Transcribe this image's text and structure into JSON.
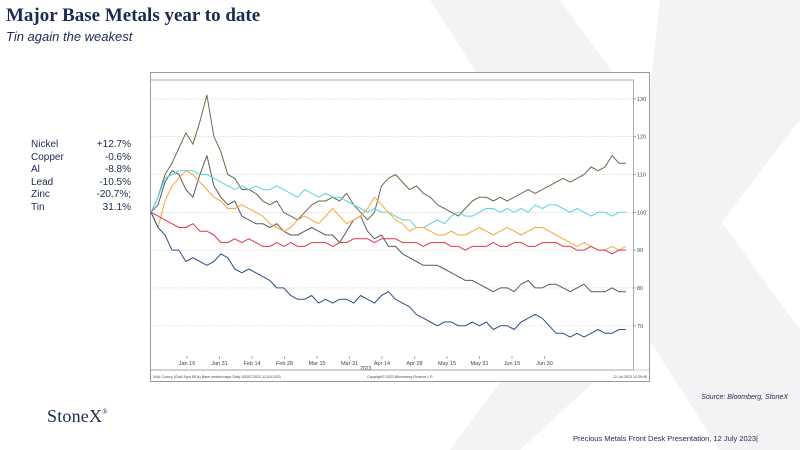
{
  "header": {
    "title": "Major Base Metals year to date",
    "subtitle": "Tin again the weakest"
  },
  "legend": [
    {
      "name": "Nickel",
      "value": "+12.7%"
    },
    {
      "name": "Copper",
      "value": "-0.6%"
    },
    {
      "name": "Al",
      "value": "-8.8%"
    },
    {
      "name": "Lead",
      "value": "-10.5%"
    },
    {
      "name": "Zinc",
      "value": "-20.7%;"
    },
    {
      "name": "Tin",
      "value": "31.1%"
    }
  ],
  "chart_data": {
    "type": "line",
    "ylim": [
      62,
      135
    ],
    "y_ticks": [
      70,
      80,
      90,
      100,
      110,
      120,
      130
    ],
    "x_tick_labels": [
      "Jan 16",
      "Jan 31",
      "Feb 14",
      "Feb 28",
      "Mar 15",
      "Mar 31",
      "Apr 14",
      "Apr 28",
      "May 15",
      "May 31",
      "Jun 15",
      "Jun 30"
    ],
    "x_year_label": "2023",
    "footer_left": "XAU Curncy (Gold Spot  $/Oz) Base metals major  Daily 30DEC2022-12JUL2023",
    "footer_mid": "Copyright© 2023 Bloomberg Finance L.P.",
    "footer_right": "12-Jul-2023 10:39:48",
    "grid": true,
    "series": [
      {
        "color": "#6b6b4b",
        "values": [
          100,
          104,
          110,
          113,
          117,
          121,
          118,
          124,
          131,
          120,
          116,
          110,
          109,
          106,
          106,
          105,
          103,
          102,
          103,
          100,
          99,
          98,
          100,
          102,
          103,
          103,
          104,
          103,
          105,
          102,
          100,
          98,
          100,
          107,
          109,
          110,
          108,
          106,
          107,
          105,
          104,
          102,
          101,
          100,
          99,
          101,
          103,
          104,
          104,
          103,
          104,
          103,
          104,
          105,
          106,
          105,
          106,
          107,
          108,
          109,
          108,
          109,
          110,
          112,
          111,
          112,
          115,
          113,
          113
        ]
      },
      {
        "color": "#5a5a5a",
        "values": [
          100,
          102,
          108,
          111,
          110,
          106,
          104,
          110,
          115,
          107,
          104,
          102,
          103,
          99,
          98,
          97,
          97,
          96,
          97,
          95,
          94,
          94,
          95,
          96,
          95,
          94,
          94,
          92,
          95,
          98,
          99,
          95,
          93,
          94,
          91,
          91,
          89,
          88,
          87,
          86,
          86,
          86,
          85,
          84,
          83,
          82,
          82,
          81,
          80,
          79,
          80,
          80,
          79,
          81,
          82,
          80,
          80,
          81,
          81,
          80,
          79,
          80,
          81,
          79,
          79,
          79,
          80,
          79,
          79
        ]
      },
      {
        "color": "#5bd4e0",
        "values": [
          100,
          104,
          109,
          110,
          111,
          111,
          111,
          110,
          110,
          109,
          108,
          107,
          106,
          107,
          106,
          107,
          106,
          106,
          107,
          106,
          105,
          104,
          106,
          105,
          104,
          105,
          104,
          104,
          103,
          102,
          101,
          100,
          101,
          100,
          100,
          99,
          98,
          98,
          96,
          96,
          97,
          98,
          97,
          99,
          100,
          99,
          99,
          100,
          101,
          101,
          100,
          101,
          100,
          101,
          100,
          102,
          101,
          102,
          102,
          101,
          100,
          101,
          100,
          99,
          100,
          100,
          99,
          100,
          100
        ]
      },
      {
        "color": "#f2a93b",
        "values": [
          100,
          96,
          103,
          107,
          109,
          111,
          110,
          108,
          106,
          104,
          103,
          101,
          101,
          102,
          101,
          100,
          99,
          97,
          96,
          95,
          96,
          98,
          99,
          98,
          97,
          99,
          101,
          99,
          97,
          98,
          99,
          101,
          104,
          102,
          100,
          98,
          97,
          95,
          96,
          96,
          95,
          94,
          94,
          95,
          94,
          94,
          95,
          96,
          95,
          94,
          95,
          96,
          95,
          94,
          95,
          96,
          96,
          95,
          94,
          93,
          92,
          91,
          92,
          91,
          90,
          90,
          91,
          90,
          91
        ]
      },
      {
        "color": "#e0344a",
        "values": [
          100,
          99,
          98,
          97,
          96,
          96,
          97,
          95,
          95,
          94,
          92,
          92,
          93,
          92,
          93,
          92,
          91,
          91,
          92,
          91,
          92,
          91,
          91,
          92,
          92,
          92,
          91,
          92,
          92,
          93,
          93,
          93,
          92,
          93,
          93,
          93,
          92,
          92,
          92,
          91,
          92,
          92,
          92,
          91,
          91,
          90,
          91,
          91,
          91,
          92,
          91,
          91,
          92,
          92,
          91,
          91,
          92,
          92,
          92,
          91,
          91,
          90,
          90,
          91,
          90,
          90,
          89,
          90,
          90
        ]
      },
      {
        "color": "#2f4f85",
        "values": [
          100,
          96,
          94,
          90,
          90,
          87,
          88,
          87,
          86,
          87,
          89,
          88,
          85,
          84,
          85,
          84,
          83,
          82,
          80,
          80,
          78,
          77,
          77,
          78,
          76,
          77,
          76,
          77,
          77,
          76,
          78,
          77,
          76,
          78,
          79,
          77,
          76,
          75,
          73,
          72,
          71,
          70,
          71,
          71,
          70,
          70,
          71,
          70,
          71,
          69,
          70,
          70,
          69,
          71,
          72,
          73,
          72,
          70,
          68,
          68,
          67,
          68,
          67,
          68,
          69,
          68,
          68,
          69,
          69
        ]
      }
    ]
  }
}
